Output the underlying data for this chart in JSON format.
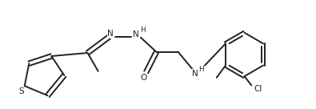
{
  "bg_color": "#ffffff",
  "line_color": "#222222",
  "text_color": "#222222",
  "line_width": 1.4,
  "font_size": 7.5,
  "figsize": [
    3.95,
    1.36
  ],
  "dpi": 100,
  "xlim": [
    0,
    9.5
  ],
  "ylim": [
    0,
    3.4
  ]
}
